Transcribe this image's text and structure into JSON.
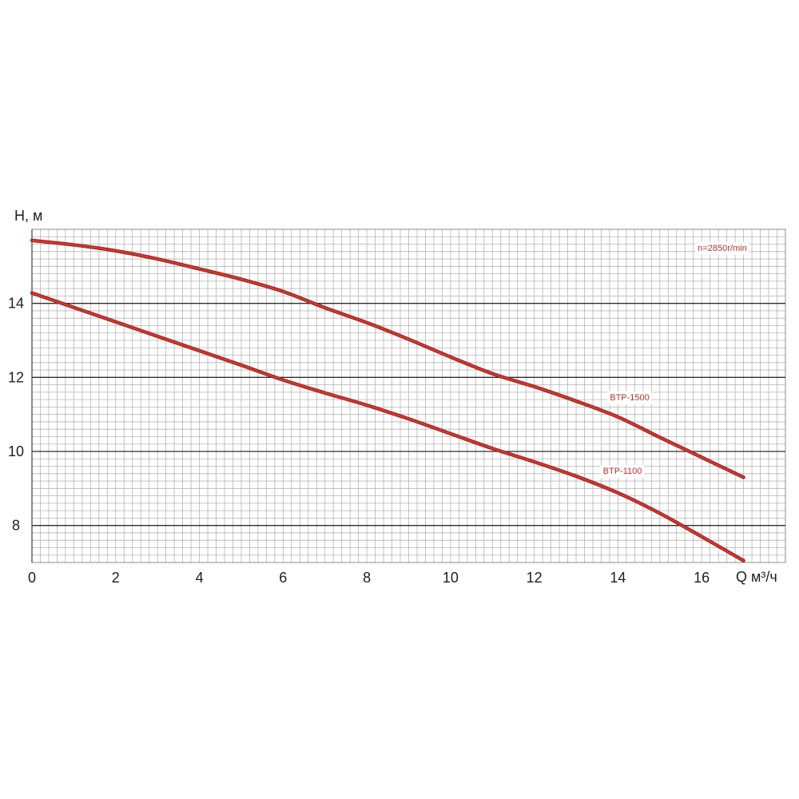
{
  "chart_data": {
    "type": "line",
    "xlabel": "Q м³/ч",
    "ylabel": "H, м",
    "xlim": [
      0,
      18
    ],
    "ylim": [
      7,
      16
    ],
    "x_ticks": [
      0,
      2,
      4,
      6,
      8,
      10,
      12,
      14,
      16
    ],
    "y_ticks": [
      8,
      10,
      12,
      14
    ],
    "grid": true,
    "annotation": "n=2850r/min",
    "series": [
      {
        "name": "BTP-1500",
        "x": [
          0,
          1,
          2,
          3,
          4,
          5,
          6,
          7,
          8,
          9,
          10,
          11,
          12,
          13,
          14,
          15,
          16,
          17
        ],
        "y": [
          15.7,
          15.58,
          15.42,
          15.2,
          14.93,
          14.65,
          14.32,
          13.88,
          13.48,
          13.03,
          12.55,
          12.1,
          11.75,
          11.36,
          10.93,
          10.38,
          9.84,
          9.3
        ]
      },
      {
        "name": "BTP-1100",
        "x": [
          0,
          1,
          2,
          3,
          4,
          5,
          6,
          7,
          8,
          9,
          10,
          11,
          12,
          13,
          14,
          15,
          16,
          17
        ],
        "y": [
          14.28,
          13.89,
          13.5,
          13.11,
          12.72,
          12.33,
          11.93,
          11.58,
          11.25,
          10.88,
          10.48,
          10.08,
          9.72,
          9.33,
          8.88,
          8.33,
          7.7,
          7.05
        ]
      }
    ]
  },
  "colors": {
    "curve": "#d0372e",
    "curve_edge": "#8f1f1b",
    "label_text": "#c0302a"
  }
}
